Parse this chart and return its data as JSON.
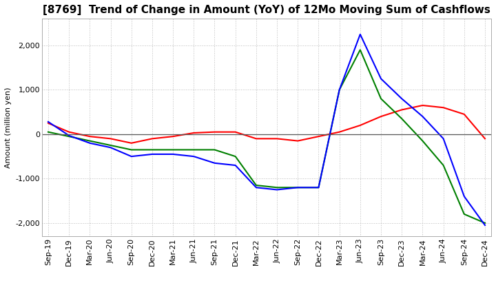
{
  "title": "[8769]  Trend of Change in Amount (YoY) of 12Mo Moving Sum of Cashflows",
  "ylabel": "Amount (million yen)",
  "x_labels": [
    "Sep-19",
    "Dec-19",
    "Mar-20",
    "Jun-20",
    "Sep-20",
    "Dec-20",
    "Mar-21",
    "Jun-21",
    "Sep-21",
    "Dec-21",
    "Mar-22",
    "Jun-22",
    "Sep-22",
    "Dec-22",
    "Mar-23",
    "Jun-23",
    "Sep-23",
    "Dec-23",
    "Mar-24",
    "Jun-24",
    "Sep-24",
    "Dec-24"
  ],
  "operating": [
    250,
    50,
    -50,
    -100,
    -200,
    -100,
    -50,
    30,
    50,
    50,
    -100,
    -100,
    -150,
    -50,
    50,
    200,
    400,
    550,
    650,
    600,
    450,
    -100
  ],
  "investing": [
    50,
    -50,
    -150,
    -250,
    -350,
    -350,
    -350,
    -350,
    -350,
    -500,
    -1150,
    -1200,
    -1200,
    -1200,
    1000,
    1900,
    800,
    350,
    -150,
    -700,
    -1800,
    -2000
  ],
  "free": [
    280,
    -30,
    -200,
    -300,
    -500,
    -450,
    -450,
    -500,
    -650,
    -700,
    -1200,
    -1250,
    -1200,
    -1200,
    1000,
    2250,
    1250,
    800,
    400,
    -100,
    -1400,
    -2050
  ],
  "ylim": [
    -2300,
    2600
  ],
  "yticks": [
    -2000,
    -1000,
    0,
    1000,
    2000
  ],
  "operating_color": "#ff0000",
  "investing_color": "#008000",
  "free_color": "#0000ff",
  "background_color": "#ffffff",
  "grid_color": "#bbbbbb",
  "grid_linestyle": ":",
  "title_fontsize": 11,
  "axis_fontsize": 8,
  "legend_fontsize": 9
}
